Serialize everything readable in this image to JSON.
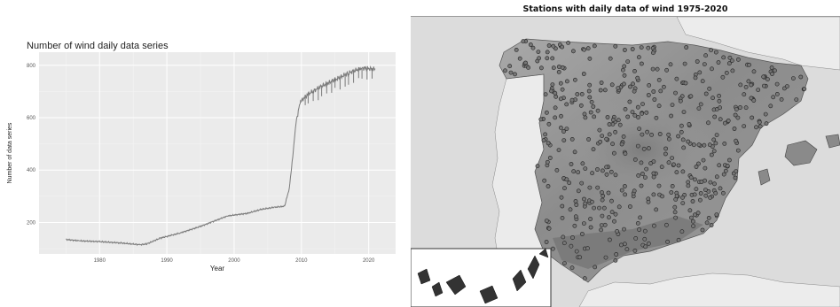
{
  "chart_data": [
    {
      "type": "line",
      "title": "Number of wind daily data series",
      "xlabel": "Year",
      "ylabel": "Number of data series",
      "xlim": [
        1971,
        2024
      ],
      "ylim": [
        80,
        850
      ],
      "x_ticks": [
        1980,
        1990,
        2000,
        2010,
        2020
      ],
      "y_ticks": [
        200,
        400,
        600,
        800
      ],
      "grid": true,
      "series": [
        {
          "x": [
            1975,
            1977,
            1980,
            1983,
            1986,
            1987,
            1989,
            1992,
            1995,
            1997,
            1999,
            2002,
            2004,
            2006,
            2007.5,
            2008.2,
            2008.7,
            2009.2,
            2009.8,
            2011,
            2013,
            2015,
            2017,
            2019,
            2021
          ],
          "values": [
            135,
            130,
            127,
            122,
            115,
            118,
            140,
            160,
            185,
            205,
            225,
            235,
            250,
            258,
            262,
            330,
            450,
            580,
            660,
            690,
            720,
            745,
            770,
            790,
            785
          ]
        }
      ]
    },
    {
      "type": "scatter",
      "title": "Stations with daily data of wind    1975-2020"
    }
  ]
}
